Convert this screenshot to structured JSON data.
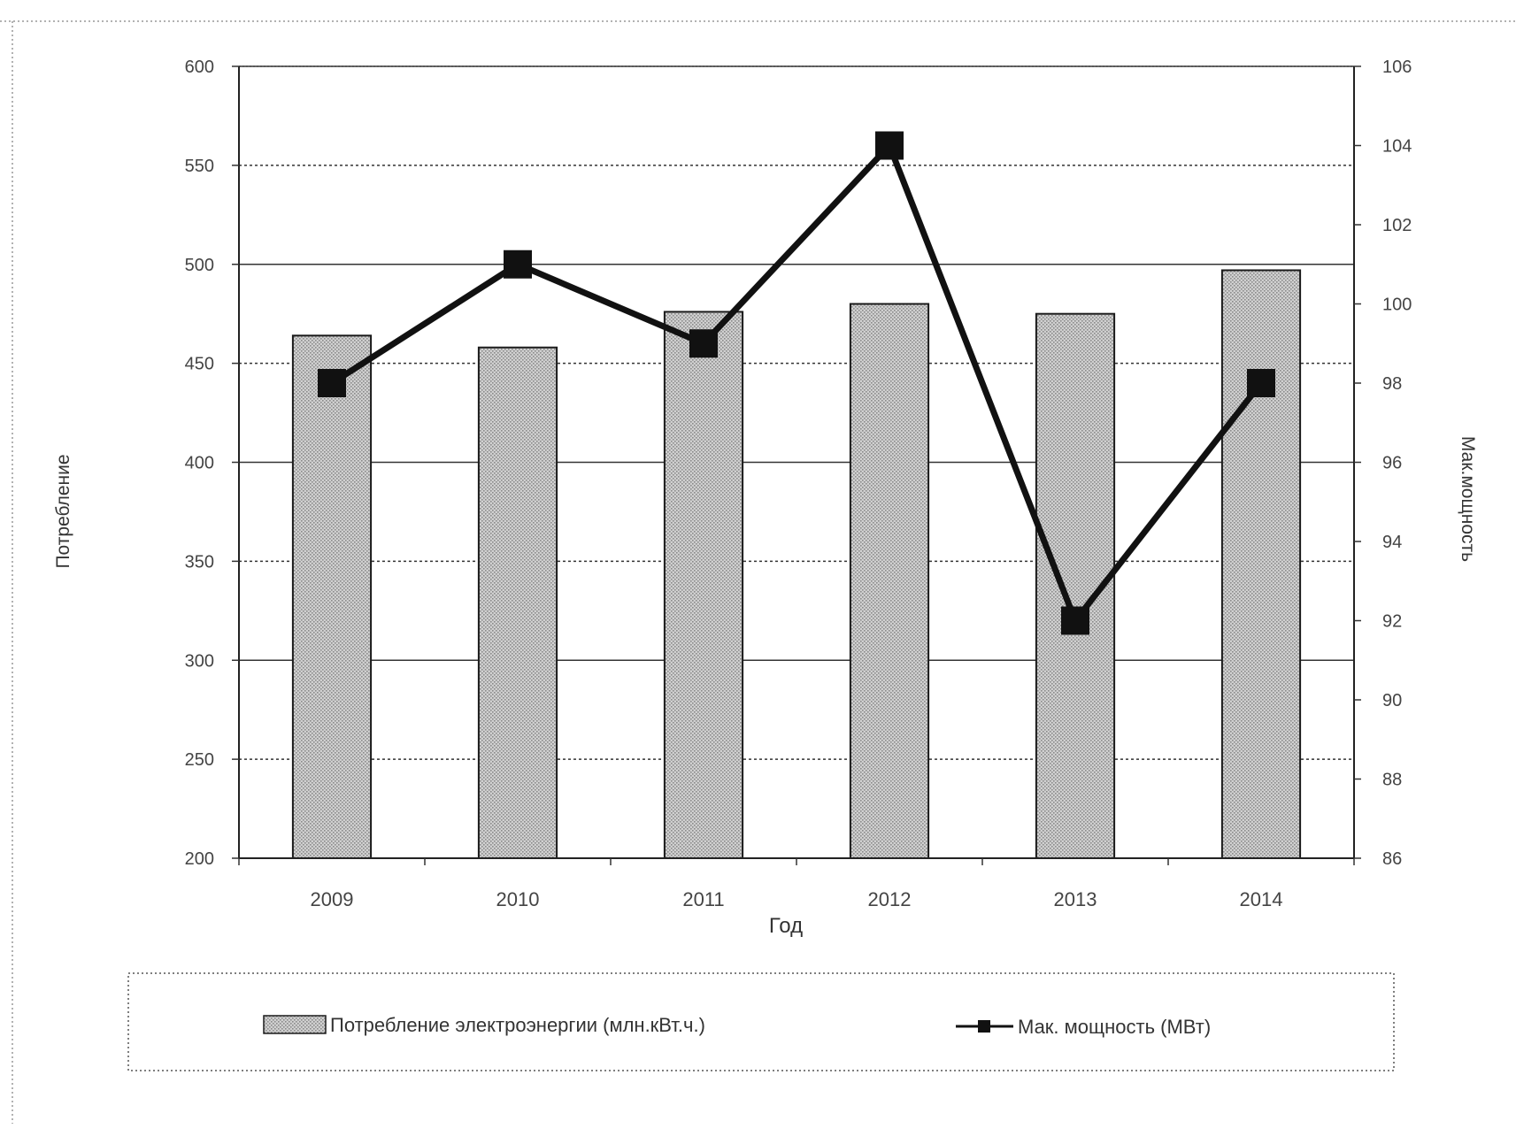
{
  "chart_data": {
    "type": "bar",
    "categories": [
      "2009",
      "2010",
      "2011",
      "2012",
      "2013",
      "2014"
    ],
    "series": [
      {
        "name": "Потребление электроэнергии (млн.кВт.ч.)",
        "type": "bar",
        "axis": "left",
        "values": [
          464,
          458,
          476,
          480,
          475,
          497
        ]
      },
      {
        "name": "Мак. мощность (МВт)",
        "type": "line",
        "axis": "right",
        "values": [
          98,
          101,
          99,
          104,
          92,
          98
        ]
      }
    ],
    "xlabel": "Год",
    "ylabel": "Потребление",
    "y2label": "Мак.мощность",
    "ylim": [
      200,
      600
    ],
    "y2lim": [
      86,
      106
    ],
    "yticks": [
      "200",
      "250",
      "300",
      "350",
      "400",
      "450",
      "500",
      "550",
      "600"
    ],
    "y2ticks": [
      "86",
      "88",
      "90",
      "92",
      "94",
      "96",
      "98",
      "100",
      "102",
      "104",
      "106"
    ],
    "grid": true,
    "legend": "bottom",
    "colors": {
      "bar_fill": "#c4c4c4",
      "bar_stroke": "#1a1a1a",
      "line": "#111111",
      "grid": "#333333"
    }
  }
}
